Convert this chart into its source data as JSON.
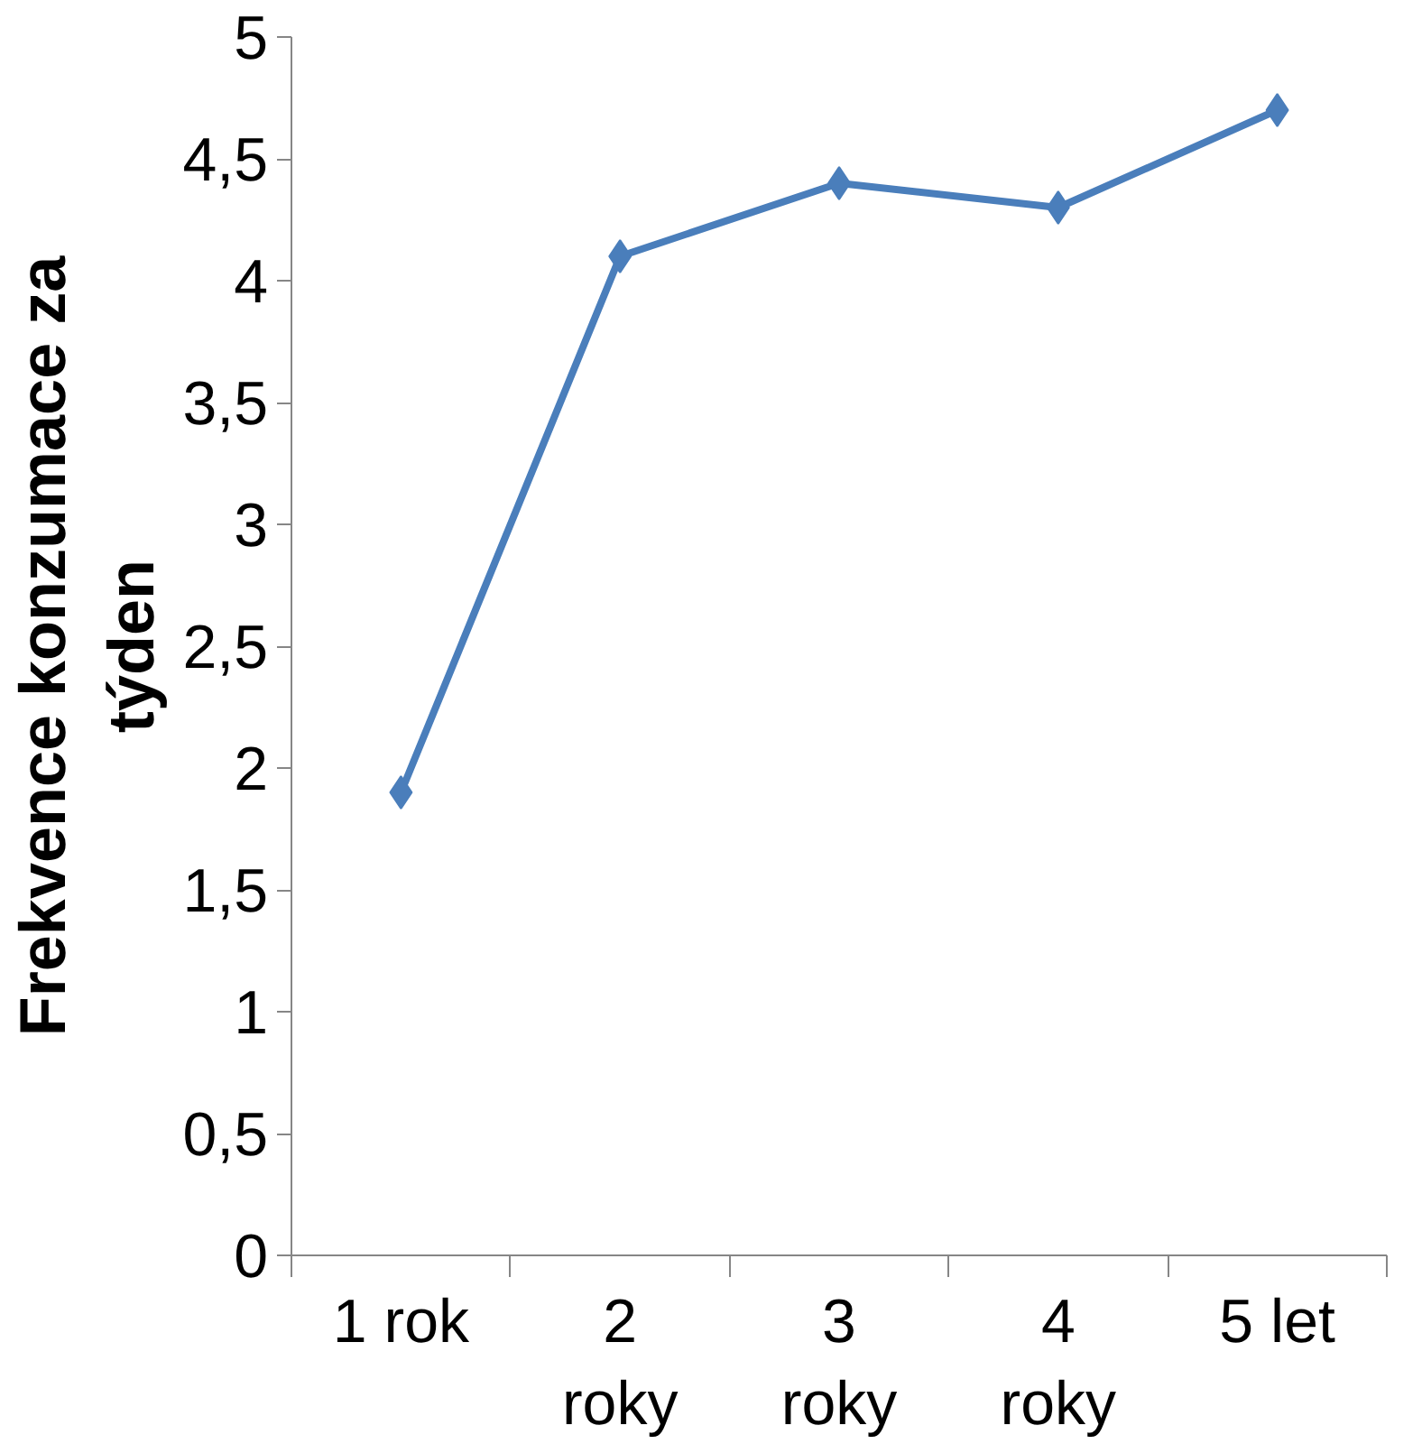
{
  "chart_data": {
    "type": "line",
    "ylabel": "Frekvence konzumace za týden",
    "categories": [
      "1 rok",
      "2 roky",
      "3 roky",
      "4 roky",
      "5 let"
    ],
    "series": [
      {
        "color": "#4a7ebb",
        "values": [
          1.9,
          4.1,
          4.4,
          4.3,
          4.7
        ]
      }
    ],
    "ylim": [
      0,
      5
    ],
    "yticks": [
      0,
      {
        "value": 0.5,
        "label": "0,5"
      },
      1,
      {
        "value": 1.5,
        "label": "1,5"
      },
      2,
      {
        "value": 2.5,
        "label": "2,5"
      },
      3,
      {
        "value": 3.5,
        "label": "3,5"
      },
      4,
      {
        "value": 4.5,
        "label": "4,5"
      },
      5
    ],
    "grid": false,
    "marker": "diamond",
    "line_style": "solid"
  }
}
